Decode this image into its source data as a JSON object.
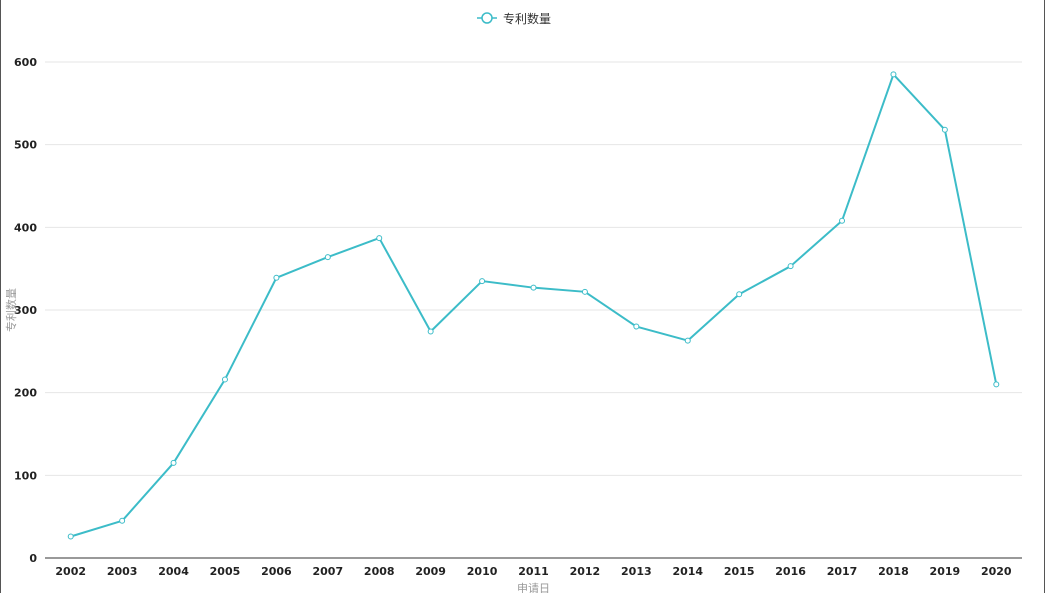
{
  "chart_data": {
    "type": "line",
    "x": [
      "2002",
      "2003",
      "2004",
      "2005",
      "2006",
      "2007",
      "2008",
      "2009",
      "2010",
      "2011",
      "2012",
      "2013",
      "2014",
      "2015",
      "2016",
      "2017",
      "2018",
      "2019",
      "2020"
    ],
    "series": [
      {
        "name": "专利数量",
        "values": [
          26,
          45,
          115,
          216,
          339,
          364,
          387,
          274,
          335,
          327,
          322,
          280,
          263,
          319,
          353,
          408,
          585,
          518,
          210
        ],
        "color": "#3cbcc8"
      }
    ],
    "xlabel": "申请日",
    "ylabel": "专利数量",
    "ylim": [
      0,
      600
    ],
    "yticks": [
      0,
      100,
      200,
      300,
      400,
      500,
      600
    ],
    "grid": true,
    "legend": "top-center"
  }
}
